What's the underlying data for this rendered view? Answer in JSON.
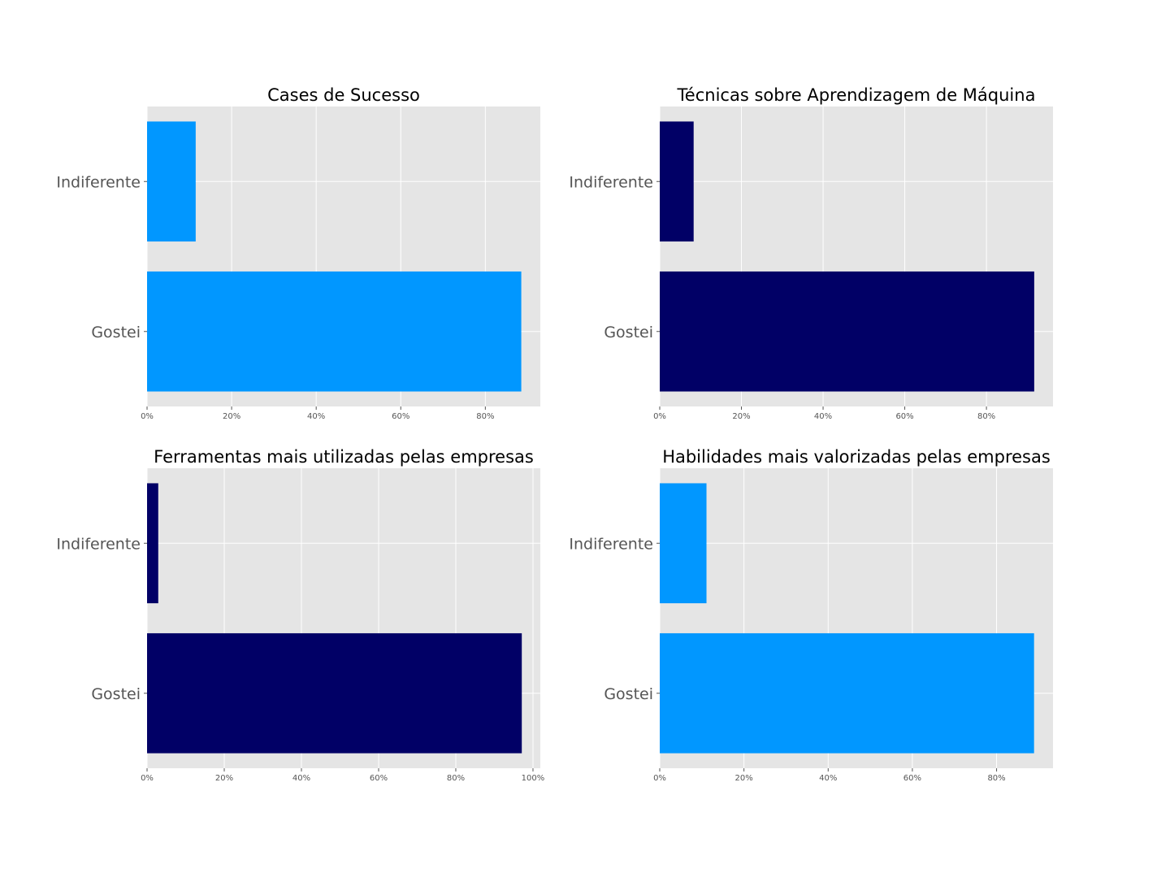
{
  "chart_data": [
    {
      "type": "bar",
      "orientation": "horizontal",
      "title": "Cases de Sucesso",
      "categories": [
        "Indiferente",
        "Gostei"
      ],
      "values": [
        11.5,
        88.5
      ],
      "xlim": [
        0,
        93
      ],
      "xticks": [
        "0%",
        "20%",
        "40%",
        "60%",
        "80%"
      ],
      "xtick_values": [
        0,
        20,
        40,
        60,
        80
      ],
      "color": "#0197ff",
      "grid": true
    },
    {
      "type": "bar",
      "orientation": "horizontal",
      "title": "Técnicas sobre Aprendizagem de Máquina",
      "categories": [
        "Indiferente",
        "Gostei"
      ],
      "values": [
        8.3,
        91.7
      ],
      "xlim": [
        0,
        96.3
      ],
      "xticks": [
        "0%",
        "20%",
        "40%",
        "60%",
        "80%"
      ],
      "xtick_values": [
        0,
        20,
        40,
        60,
        80
      ],
      "color": "#010066",
      "grid": true
    },
    {
      "type": "bar",
      "orientation": "horizontal",
      "title": "Ferramentas mais utilizadas pelas empresas",
      "categories": [
        "Indiferente",
        "Gostei"
      ],
      "values": [
        2.9,
        97.1
      ],
      "xlim": [
        0,
        101.9
      ],
      "xticks": [
        "0%",
        "20%",
        "40%",
        "60%",
        "80%",
        "100%"
      ],
      "xtick_values": [
        0,
        20,
        40,
        60,
        80,
        100
      ],
      "color": "#010066",
      "grid": true
    },
    {
      "type": "bar",
      "orientation": "horizontal",
      "title": "Habilidades mais valorizadas pelas empresas",
      "categories": [
        "Indiferente",
        "Gostei"
      ],
      "values": [
        11.1,
        88.9
      ],
      "xlim": [
        0,
        93.4
      ],
      "xticks": [
        "0%",
        "20%",
        "40%",
        "60%",
        "80%"
      ],
      "xtick_values": [
        0,
        20,
        40,
        60,
        80
      ],
      "color": "#0197ff",
      "grid": true
    }
  ]
}
